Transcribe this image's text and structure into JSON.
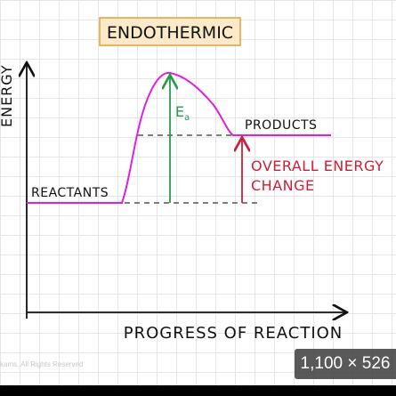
{
  "diagram": {
    "title": "ENDOTHERMIC",
    "y_axis_label": "ENERGY",
    "x_axis_label": "PROGRESS OF REACTION",
    "reactants_label": "REACTANTS",
    "products_label": "PRODUCTS",
    "activation_energy_label": "E",
    "activation_energy_subscript": "a",
    "overall_change_line1": "OVERALL ENERGY",
    "overall_change_line2": "CHANGE",
    "colors": {
      "curve": "#e020e0",
      "activation_arrow": "#2a9a4a",
      "overall_arrow": "#cc1f3a",
      "overall_text": "#cc1f3a",
      "axes": "#111111",
      "title_box_fill": "#fbe9c8",
      "title_box_border": "#e0a040",
      "grid": "#e6e6e6"
    }
  },
  "overlay": {
    "size_label": "1,100 × 526",
    "copyright": "kams. All Rights Reserved"
  }
}
